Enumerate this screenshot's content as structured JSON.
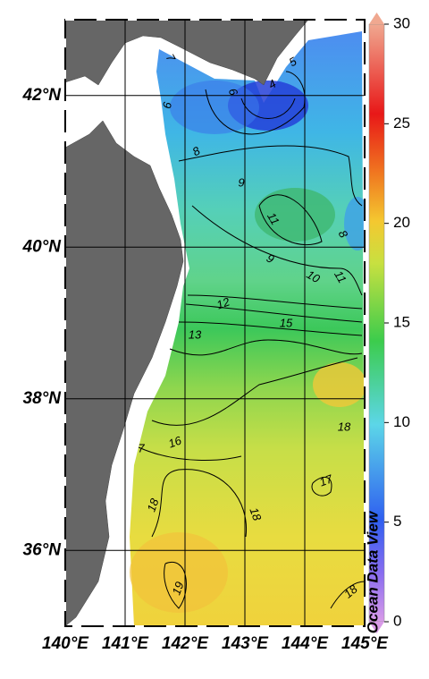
{
  "map": {
    "lon_range": [
      140,
      145
    ],
    "lat_range": [
      35,
      43
    ],
    "lon_ticks": [
      {
        "value": 140,
        "label": "140°E"
      },
      {
        "value": 141,
        "label": "141°E"
      },
      {
        "value": 142,
        "label": "142°E"
      },
      {
        "value": 143,
        "label": "143°E"
      },
      {
        "value": 144,
        "label": "144°E"
      },
      {
        "value": 145,
        "label": "145°E"
      }
    ],
    "lat_ticks": [
      {
        "value": 36,
        "label": "36°N"
      },
      {
        "value": 38,
        "label": "38°N"
      },
      {
        "value": 40,
        "label": "40°N"
      },
      {
        "value": 42,
        "label": "42°N"
      }
    ],
    "colorbar": {
      "range": [
        0,
        30
      ],
      "ticks": [
        0,
        5,
        10,
        15,
        20,
        25,
        30
      ]
    },
    "contour_labels": [
      "7",
      "6",
      "6",
      "5",
      "4",
      "8",
      "9",
      "11",
      "8",
      "9",
      "10",
      "11",
      "12",
      "13",
      "15",
      "16",
      "7",
      "18",
      "17",
      "18",
      "18",
      "19",
      "18"
    ],
    "watermark": "Ocean Data View"
  }
}
